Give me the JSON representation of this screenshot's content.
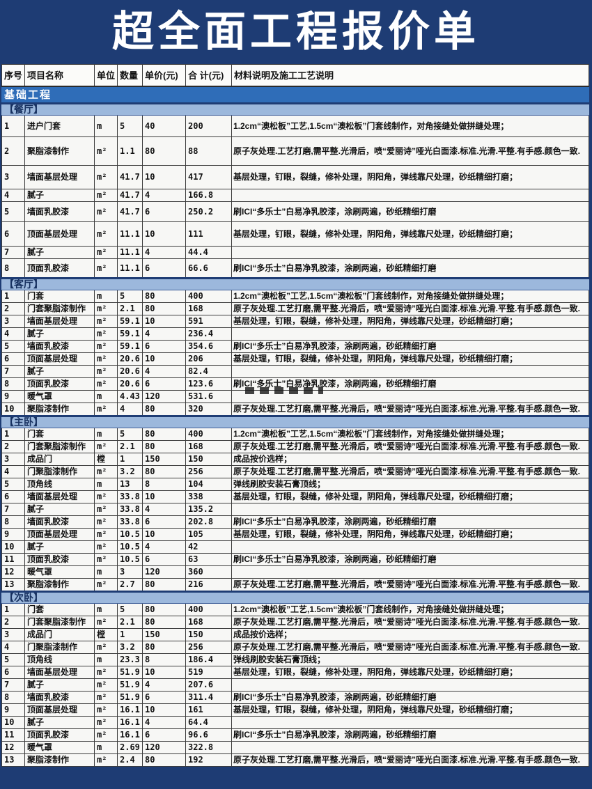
{
  "page": {
    "title": "超全面工程报价单",
    "category": "基础工程"
  },
  "table": {
    "columns": [
      "序号",
      "项目名称",
      "单位",
      "数量",
      "单价(元)",
      "合 计(元)",
      "材料说明及施工工艺说明"
    ]
  },
  "sections": [
    {
      "name": "【餐厅】",
      "rows": [
        {
          "no": "1",
          "item": "进户门套",
          "unit": "m",
          "qty": "5",
          "price": "40",
          "total": "200",
          "desc": "1.2cm“澳松板”工艺,1.5cm“澳松板”门套线制作，对角接缝处做拼缝处理；"
        },
        {
          "no": "2",
          "item": "聚脂漆制作",
          "unit": "m²",
          "qty": "1.1",
          "price": "80",
          "total": "88",
          "desc": "原子灰处理.工艺打磨,需平整.光滑后，喷“爱丽诗”哑光白面漆.标准.光滑.平整.有手感.颜色一致."
        },
        {
          "no": "3",
          "item": "墙面基层处理",
          "unit": "m²",
          "qty": "41.7",
          "price": "10",
          "total": "417",
          "desc": "基层处理，钉眼，裂缝，修补处理，阴阳角，弹线靠尺处理，砂纸精细打磨；"
        },
        {
          "no": "4",
          "item": "腻子",
          "unit": "m²",
          "qty": "41.7",
          "price": "4",
          "total": "166.8",
          "desc": ""
        },
        {
          "no": "5",
          "item": "墙面乳胶漆",
          "unit": "m²",
          "qty": "41.7",
          "price": "6",
          "total": "250.2",
          "desc": "刷ICI“多乐士”白易净乳胶漆，涂刷两遍，砂纸精细打磨"
        },
        {
          "no": "6",
          "item": "顶面基层处理",
          "unit": "m²",
          "qty": "11.1",
          "price": "10",
          "total": "111",
          "desc": "基层处理，钉眼，裂缝，修补处理，阴阳角，弹线靠尺处理，砂纸精细打磨；"
        },
        {
          "no": "7",
          "item": "腻子",
          "unit": "m²",
          "qty": "11.1",
          "price": "4",
          "total": "44.4",
          "desc": ""
        },
        {
          "no": "8",
          "item": "顶面乳胶漆",
          "unit": "m²",
          "qty": "11.1",
          "price": "6",
          "total": "66.6",
          "desc": "刷ICI“多乐士”白易净乳胶漆，涂刷两遍，砂纸精细打磨"
        }
      ]
    },
    {
      "name": "【客厅】",
      "rows": [
        {
          "no": "1",
          "item": "门套",
          "unit": "m",
          "qty": "5",
          "price": "80",
          "total": "400",
          "desc": "1.2cm“澳松板”工艺,1.5cm“澳松板”门套线制作，对角接缝处做拼缝处理；"
        },
        {
          "no": "2",
          "item": "门套聚脂漆制作",
          "unit": "m²",
          "qty": "2.1",
          "price": "80",
          "total": "168",
          "desc": "原子灰处理.工艺打磨,需平整.光滑后，喷“爱丽诗”哑光白面漆.标准.光滑.平整.有手感.颜色一致."
        },
        {
          "no": "3",
          "item": "墙面基层处理",
          "unit": "m²",
          "qty": "59.1",
          "price": "10",
          "total": "591",
          "desc": "基层处理，钉眼，裂缝，修补处理，阴阳角，弹线靠尺处理，砂纸精细打磨；"
        },
        {
          "no": "4",
          "item": "腻子",
          "unit": "m²",
          "qty": "59.1",
          "price": "4",
          "total": "236.4",
          "desc": ""
        },
        {
          "no": "5",
          "item": "墙面乳胶漆",
          "unit": "m²",
          "qty": "59.1",
          "price": "6",
          "total": "354.6",
          "desc": "刷ICI“多乐士”白易净乳胶漆，涂刷两遍，砂纸精细打磨"
        },
        {
          "no": "6",
          "item": "顶面基层处理",
          "unit": "m²",
          "qty": "20.6",
          "price": "10",
          "total": "206",
          "desc": "基层处理，钉眼，裂缝，修补处理，阴阳角，弹线靠尺处理，砂纸精细打磨；"
        },
        {
          "no": "7",
          "item": "腻子",
          "unit": "m²",
          "qty": "20.6",
          "price": "4",
          "total": "82.4",
          "desc": ""
        },
        {
          "no": "8",
          "item": "顶面乳胶漆",
          "unit": "m²",
          "qty": "20.6",
          "price": "6",
          "total": "123.6",
          "desc": "刷ICI“多乐士”白易净乳胶漆，涂刷两遍，砂纸精细打磨"
        },
        {
          "no": "9",
          "item": "暖气罩",
          "unit": "m",
          "qty": "4.43",
          "price": "120",
          "total": "531.6",
          "desc": ""
        },
        {
          "no": "10",
          "item": "聚脂漆制作",
          "unit": "m²",
          "qty": "4",
          "price": "80",
          "total": "320",
          "desc": "原子灰处理.工艺打磨,需平整.光滑后，喷“爱丽诗”哑光白面漆.标准.光滑.平整.有手感.颜色一致."
        }
      ]
    },
    {
      "name": "【主卧】",
      "rows": [
        {
          "no": "1",
          "item": "门套",
          "unit": "m",
          "qty": "5",
          "price": "80",
          "total": "400",
          "desc": "1.2cm“澳松板”工艺,1.5cm“澳松板”门套线制作，对角接缝处做拼缝处理；"
        },
        {
          "no": "2",
          "item": "门套聚脂漆制作",
          "unit": "m²",
          "qty": "2.1",
          "price": "80",
          "total": "168",
          "desc": "原子灰处理.工艺打磨,需平整.光滑后，喷“爱丽诗”哑光白面漆.标准.光滑.平整.有手感.颜色一致."
        },
        {
          "no": "3",
          "item": "成品门",
          "unit": "樘",
          "qty": "1",
          "price": "150",
          "total": "150",
          "desc": "成品按价选样；"
        },
        {
          "no": "4",
          "item": "门聚脂漆制作",
          "unit": "m²",
          "qty": "3.2",
          "price": "80",
          "total": "256",
          "desc": "原子灰处理.工艺打磨,需平整.光滑后，喷“爱丽诗”哑光白面漆.标准.光滑.平整.有手感.颜色一致."
        },
        {
          "no": "5",
          "item": "顶角线",
          "unit": "m",
          "qty": "13",
          "price": "8",
          "total": "104",
          "desc": "弹线刷胶安装石膏顶线；"
        },
        {
          "no": "6",
          "item": "墙面基层处理",
          "unit": "m²",
          "qty": "33.8",
          "price": "10",
          "total": "338",
          "desc": "基层处理，钉眼，裂缝，修补处理，阴阳角，弹线靠尺处理，砂纸精细打磨；"
        },
        {
          "no": "7",
          "item": "腻子",
          "unit": "m²",
          "qty": "33.8",
          "price": "4",
          "total": "135.2",
          "desc": ""
        },
        {
          "no": "8",
          "item": "墙面乳胶漆",
          "unit": "m²",
          "qty": "33.8",
          "price": "6",
          "total": "202.8",
          "desc": "刷ICI“多乐士”白易净乳胶漆，涂刷两遍，砂纸精细打磨"
        },
        {
          "no": "9",
          "item": "顶面基层处理",
          "unit": "m²",
          "qty": "10.5",
          "price": "10",
          "total": "105",
          "desc": "基层处理，钉眼，裂缝，修补处理，阴阳角，弹线靠尺处理，砂纸精细打磨；"
        },
        {
          "no": "10",
          "item": "腻子",
          "unit": "m²",
          "qty": "10.5",
          "price": "4",
          "total": "42",
          "desc": ""
        },
        {
          "no": "11",
          "item": "顶面乳胶漆",
          "unit": "m²",
          "qty": "10.5",
          "price": "6",
          "total": "63",
          "desc": "刷ICI“多乐士”白易净乳胶漆，涂刷两遍，砂纸精细打磨"
        },
        {
          "no": "12",
          "item": "暖气罩",
          "unit": "m",
          "qty": "3",
          "price": "120",
          "total": "360",
          "desc": ""
        },
        {
          "no": "13",
          "item": "聚脂漆制作",
          "unit": "m²",
          "qty": "2.7",
          "price": "80",
          "total": "216",
          "desc": "原子灰处理.工艺打磨,需平整.光滑后，喷“爱丽诗”哑光白面漆.标准.光滑.平整.有手感.颜色一致."
        }
      ]
    },
    {
      "name": "【次卧】",
      "rows": [
        {
          "no": "1",
          "item": "门套",
          "unit": "m",
          "qty": "5",
          "price": "80",
          "total": "400",
          "desc": "1.2cm“澳松板”工艺,1.5cm“澳松板”门套线制作，对角接缝处做拼缝处理；"
        },
        {
          "no": "2",
          "item": "门套聚脂漆制作",
          "unit": "m²",
          "qty": "2.1",
          "price": "80",
          "total": "168",
          "desc": "原子灰处理.工艺打磨,需平整.光滑后，喷“爱丽诗”哑光白面漆.标准.光滑.平整.有手感.颜色一致."
        },
        {
          "no": "3",
          "item": "成品门",
          "unit": "樘",
          "qty": "1",
          "price": "150",
          "total": "150",
          "desc": "成品按价选样；"
        },
        {
          "no": "4",
          "item": "门聚脂漆制作",
          "unit": "m²",
          "qty": "3.2",
          "price": "80",
          "total": "256",
          "desc": "原子灰处理.工艺打磨,需平整.光滑后，喷“爱丽诗”哑光白面漆.标准.光滑.平整.有手感.颜色一致."
        },
        {
          "no": "5",
          "item": "顶角线",
          "unit": "m",
          "qty": "23.3",
          "price": "8",
          "total": "186.4",
          "desc": "弹线刷胶安装石膏顶线；"
        },
        {
          "no": "6",
          "item": "墙面基层处理",
          "unit": "m²",
          "qty": "51.9",
          "price": "10",
          "total": "519",
          "desc": "基层处理，钉眼，裂缝，修补处理，阴阳角，弹线靠尺处理，砂纸精细打磨；"
        },
        {
          "no": "7",
          "item": "腻子",
          "unit": "m²",
          "qty": "51.9",
          "price": "4",
          "total": "207.6",
          "desc": ""
        },
        {
          "no": "8",
          "item": "墙面乳胶漆",
          "unit": "m²",
          "qty": "51.9",
          "price": "6",
          "total": "311.4",
          "desc": "刷ICI“多乐士”白易净乳胶漆，涂刷两遍，砂纸精细打磨"
        },
        {
          "no": "9",
          "item": "顶面基层处理",
          "unit": "m²",
          "qty": "16.1",
          "price": "10",
          "total": "161",
          "desc": "基层处理，钉眼，裂缝，修补处理，阴阳角，弹线靠尺处理，砂纸精细打磨；"
        },
        {
          "no": "10",
          "item": "腻子",
          "unit": "m²",
          "qty": "16.1",
          "price": "4",
          "total": "64.4",
          "desc": ""
        },
        {
          "no": "11",
          "item": "顶面乳胶漆",
          "unit": "m²",
          "qty": "16.1",
          "price": "6",
          "total": "96.6",
          "desc": "刷ICI“多乐士”白易净乳胶漆，涂刷两遍，砂纸精细打磨"
        },
        {
          "no": "12",
          "item": "暖气罩",
          "unit": "m",
          "qty": "2.69",
          "price": "120",
          "total": "322.8",
          "desc": ""
        },
        {
          "no": "13",
          "item": "聚脂漆制作",
          "unit": "m²",
          "qty": "2.4",
          "price": "80",
          "total": "192",
          "desc": "原子灰处理.工艺打磨,需平整.光滑后，喷“爱丽诗”哑光白面漆.标准.光滑.平整.有手感.颜色一致."
        }
      ]
    }
  ],
  "colors": {
    "title_bg": "#1e3c74",
    "title_text": "#ffffff",
    "category_bar_bg": "#2f6db8",
    "category_bar_text": "#ffffff",
    "section_bar_bg": "#9cb8dc",
    "section_bar_text": "#16305f",
    "grid_line": "#3c3c3c",
    "cell_bg": "#f7f7f5"
  }
}
